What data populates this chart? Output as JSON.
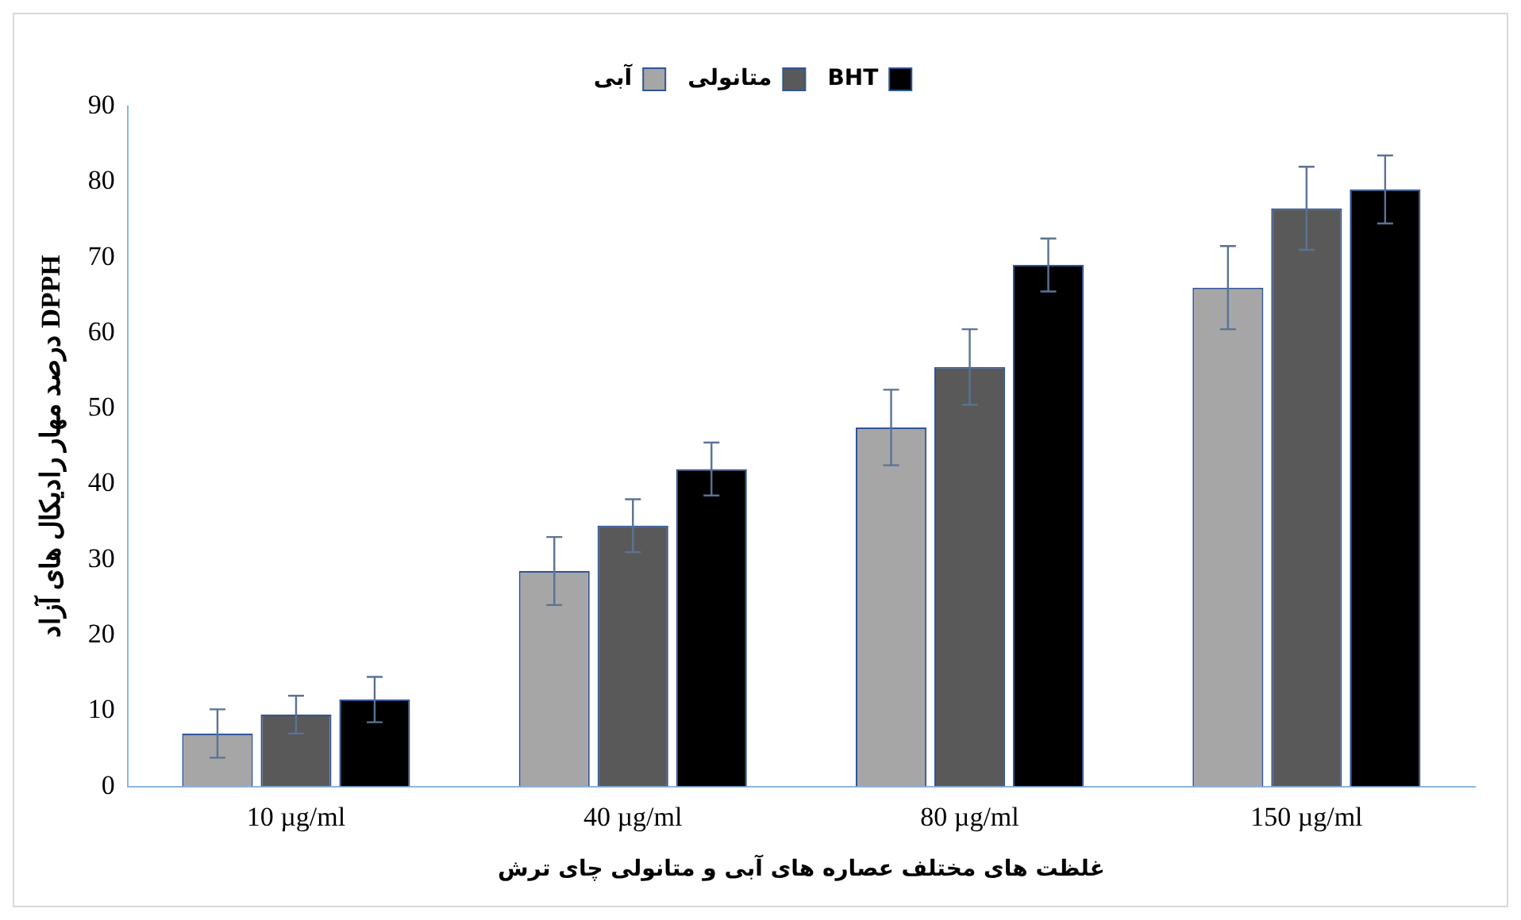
{
  "chart_data": {
    "type": "bar",
    "xlabel": "غلظت های مختلف عصاره های آبی و متانولی چای ترش",
    "ylabel": "درصد مهار رادیکال های آزاد DPPH",
    "categories": [
      "10 µg/ml",
      "40 µg/ml",
      "80 µg/ml",
      "150 µg/ml"
    ],
    "series": [
      {
        "name": "آبی",
        "color": "#a6a6a6",
        "values": [
          7,
          28.5,
          47.5,
          66
        ],
        "errors": [
          3.2,
          4.5,
          5,
          5.5
        ]
      },
      {
        "name": "متانولی",
        "color": "#595959",
        "values": [
          9.5,
          34.5,
          55.5,
          76.5
        ],
        "errors": [
          2.5,
          3.5,
          5,
          5.5
        ]
      },
      {
        "name": "BHT",
        "color": "#000000",
        "values": [
          11.5,
          42,
          69,
          79
        ],
        "errors": [
          3,
          3.5,
          3.5,
          4.5
        ]
      }
    ],
    "ylim": [
      0,
      90
    ],
    "yticks": [
      0,
      10,
      20,
      30,
      40,
      50,
      60,
      70,
      80,
      90
    ],
    "grid": false,
    "legend": "top"
  }
}
